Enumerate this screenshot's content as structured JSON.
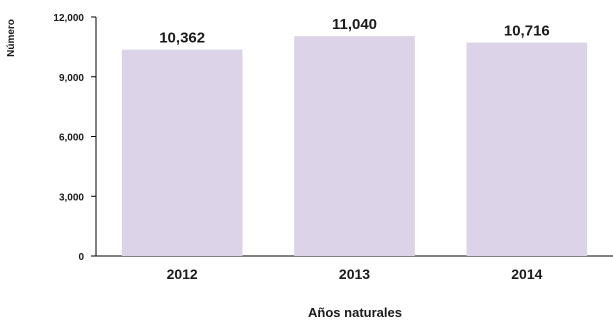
{
  "chart_data": {
    "type": "bar",
    "categories": [
      "2012",
      "2013",
      "2014"
    ],
    "values": [
      10362,
      11040,
      10716
    ],
    "data_labels": [
      "10,362",
      "11,040",
      "10,716"
    ],
    "xlabel": "Años naturales",
    "ylabel": "Número",
    "ylim": [
      0,
      12000
    ],
    "yticks": [
      0,
      3000,
      6000,
      9000,
      12000
    ],
    "ytick_labels": [
      "0",
      "3,000",
      "6,000",
      "9,000",
      "12,000"
    ],
    "grid": false,
    "bar_color": "#ddd3e8"
  }
}
